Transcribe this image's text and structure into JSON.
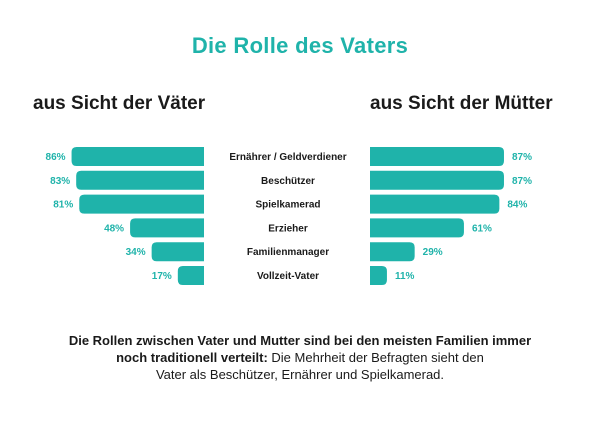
{
  "title": "Die Rolle des Vaters",
  "panels": {
    "left_title": "aus Sicht der Väter",
    "right_title": "aus Sicht der Mütter"
  },
  "colors": {
    "accent": "#1fb3aa",
    "text": "#1a1a1a"
  },
  "chart_data": {
    "type": "bar",
    "orientation": "horizontal-butterfly",
    "categories": [
      "Ernährer / Geldverdiener",
      "Beschützer",
      "Spielkamerad",
      "Erzieher",
      "Familienmanager",
      "Vollzeit-Vater"
    ],
    "series": [
      {
        "name": "aus Sicht der Väter",
        "values": [
          86,
          83,
          81,
          48,
          34,
          17
        ],
        "labels": [
          "86%",
          "83%",
          "81%",
          "48%",
          "34%",
          "17%"
        ]
      },
      {
        "name": "aus Sicht der Mütter",
        "values": [
          87,
          87,
          84,
          61,
          29,
          11
        ],
        "labels": [
          "87%",
          "87%",
          "84%",
          "61%",
          "29%",
          "11%"
        ]
      }
    ],
    "xlim": [
      0,
      100
    ],
    "grid": false
  },
  "caption": {
    "bold_1": "Die Rollen zwischen Vater und Mutter sind bei den meisten Familien immer",
    "bold_2": "noch traditionell verteilt:",
    "normal_2": " Die Mehrheit der Befragten sieht den",
    "normal_3": "Vater als Beschützer, Ernährer und Spielkamerad."
  }
}
